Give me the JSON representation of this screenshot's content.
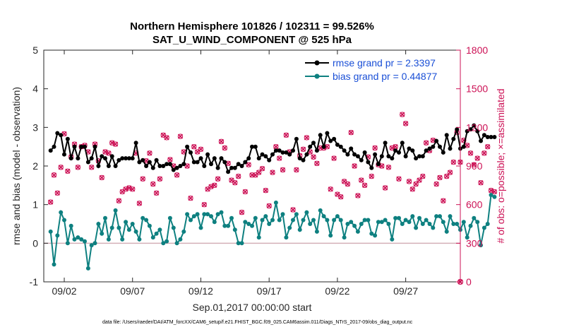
{
  "chart_data": {
    "type": "line",
    "title_line1": "Northern Hemisphere 101826 / 102311 = 99.526%",
    "title_line2": "SAT_U_WIND_COMPONENT @ 525 hPa",
    "xlabel": "Sep.01,2017 00:00:00 start",
    "ylabel_left": "rmse and bias (model - observation)",
    "ylabel_right": "# of obs: o=possible; ×=assimilated",
    "footnote": "data file: /Users/raeder/DAI/ATM_forcXX/CAM6_setup/f.e21.FHIST_BGC.f09_025.CAM6assim.011/Diags_NTrS_2017-09/obs_diag_output.nc",
    "x_range_days": [
      0.5,
      31.0
    ],
    "ylim_left": [
      -1,
      5
    ],
    "ylim_right": [
      0,
      1800
    ],
    "x_tick_labels": [
      {
        "day": 2,
        "label": "09/02"
      },
      {
        "day": 7,
        "label": "09/07"
      },
      {
        "day": 12,
        "label": "09/12"
      },
      {
        "day": 17,
        "label": "09/17"
      },
      {
        "day": 22,
        "label": "09/22"
      },
      {
        "day": 27,
        "label": "09/27"
      }
    ],
    "y_left_ticks": [
      "-1",
      "0",
      "1",
      "2",
      "3",
      "4",
      "5"
    ],
    "y_right_ticks": [
      "0",
      "300",
      "600",
      "900",
      "1200",
      "1500",
      "1800"
    ],
    "grid": false,
    "legend_position": "top-right",
    "colors": {
      "rmse": "#000000",
      "bias": "#0e8080",
      "obs": "#cc1155",
      "zero_line": "#d4b0b8"
    },
    "x_start_day": 1.0,
    "x_step_days": 0.25,
    "series": [
      {
        "name": "rmse grand pr = 2.3397",
        "values": [
          2.4,
          2.5,
          2.85,
          2.8,
          2.3,
          2.7,
          2.2,
          2.5,
          2.2,
          2.5,
          2.5,
          2.1,
          2.2,
          2.5,
          2.0,
          2.25,
          2.2,
          2.0,
          2.25,
          2.0,
          2.15,
          2.2,
          2.2,
          2.2,
          2.2,
          2.6,
          2.1,
          2.15,
          2.0,
          2.1,
          1.95,
          2.15,
          2.0,
          2.0,
          2.05,
          2.05,
          1.9,
          1.95,
          2.0,
          2.05,
          2.5,
          2.35,
          2.1,
          2.1,
          2.2,
          2.0,
          2.3,
          2.05,
          2.2,
          1.95,
          2.2,
          2.1,
          1.85,
          1.95,
          1.95,
          2.05,
          2.0,
          2.1,
          2.2,
          2.5,
          2.5,
          2.2,
          2.3,
          2.25,
          2.15,
          2.3,
          2.4,
          2.4,
          2.35,
          2.35,
          2.3,
          2.4,
          2.7,
          2.2,
          2.15,
          2.3,
          2.5,
          2.6,
          2.4,
          2.8,
          2.5,
          2.85,
          2.65,
          2.7,
          2.55,
          2.5,
          2.4,
          2.3,
          2.45,
          2.3,
          2.25,
          2.15,
          2.35,
          2.1,
          1.95,
          2.3,
          2.05,
          2.25,
          2.6,
          2.25,
          2.2,
          2.4,
          2.35,
          2.6,
          2.25,
          2.45,
          2.4,
          2.2,
          2.25,
          2.25,
          2.4,
          2.45,
          2.5,
          2.65,
          2.5,
          2.35,
          2.8,
          2.45,
          2.7,
          2.95,
          2.45,
          2.5,
          2.9,
          2.95,
          3.05,
          2.9,
          2.65,
          2.8,
          2.75,
          2.75,
          2.75
        ]
      },
      {
        "name": "bias grand pr = 0.44877",
        "values": [
          0.3,
          -0.55,
          0.2,
          0.8,
          0.6,
          0.0,
          0.45,
          0.1,
          0.15,
          0.1,
          0.05,
          -0.65,
          -0.05,
          0.0,
          0.5,
          0.25,
          0.65,
          0.1,
          0.4,
          0.85,
          0.4,
          0.1,
          0.55,
          0.35,
          0.5,
          0.3,
          0.1,
          0.65,
          0.6,
          0.45,
          0.15,
          0.25,
          0.35,
          0.0,
          0.05,
          0.65,
          0.4,
          0.0,
          0.1,
          0.3,
          0.75,
          0.6,
          0.7,
          0.75,
          0.4,
          0.75,
          0.75,
          0.7,
          0.55,
          0.75,
          0.8,
          0.45,
          0.45,
          0.65,
          0.35,
          0.0,
          0.0,
          0.55,
          0.5,
          0.45,
          0.65,
          0.15,
          0.6,
          0.7,
          0.5,
          0.6,
          1.05,
          0.6,
          0.75,
          0.15,
          0.4,
          0.6,
          0.75,
          0.35,
          0.6,
          0.8,
          0.5,
          0.6,
          0.3,
          0.85,
          0.7,
          0.6,
          0.2,
          0.6,
          0.7,
          0.6,
          0.15,
          0.5,
          0.55,
          0.45,
          0.3,
          0.5,
          0.6,
          0.6,
          0.25,
          0.2,
          0.55,
          0.55,
          0.6,
          0.5,
          0.1,
          0.65,
          0.65,
          0.5,
          0.6,
          0.55,
          0.7,
          0.4,
          0.65,
          0.5,
          0.6,
          0.5,
          0.4,
          0.7,
          0.7,
          0.55,
          0.3,
          0.7,
          0.5,
          0.5,
          0.35,
          0.55,
          0.15,
          0.45,
          0.65,
          0.55,
          -0.05,
          0.4,
          0.5,
          1.25,
          1.2
        ]
      }
    ],
    "obs_counts": [
      620,
      830,
      690,
      890,
      1150,
      860,
      970,
      1070,
      890,
      1050,
      1060,
      1010,
      890,
      1070,
      940,
      810,
      1010,
      1000,
      1080,
      1070,
      630,
      700,
      720,
      730,
      720,
      1000,
      610,
      800,
      940,
      1000,
      760,
      690,
      800,
      1140,
      1120,
      950,
      900,
      830,
      1130,
      1010,
      900,
      650,
      1050,
      1010,
      1030,
      600,
      720,
      740,
      750,
      800,
      1090,
      1040,
      920,
      790,
      770,
      820,
      540,
      700,
      910,
      830,
      830,
      850,
      880,
      710,
      590,
      850,
      1050,
      960,
      870,
      1140,
      1010,
      560,
      870,
      980,
      1030,
      1120,
      1010,
      970,
      920,
      1040,
      1040,
      1050,
      720,
      960,
      680,
      660,
      780,
      760,
      1160,
      900,
      670,
      790,
      750,
      970,
      820,
      1040,
      910,
      900,
      730,
      890,
      1040,
      1050,
      800,
      1300,
      1230,
      780,
      720,
      760,
      790,
      820,
      1080,
      1020,
      1100,
      760,
      810,
      630,
      820,
      850,
      930,
      1160,
      930,
      1100,
      1060,
      1000,
      910,
      960,
      770,
      1000,
      1050,
      710,
      700
    ]
  }
}
